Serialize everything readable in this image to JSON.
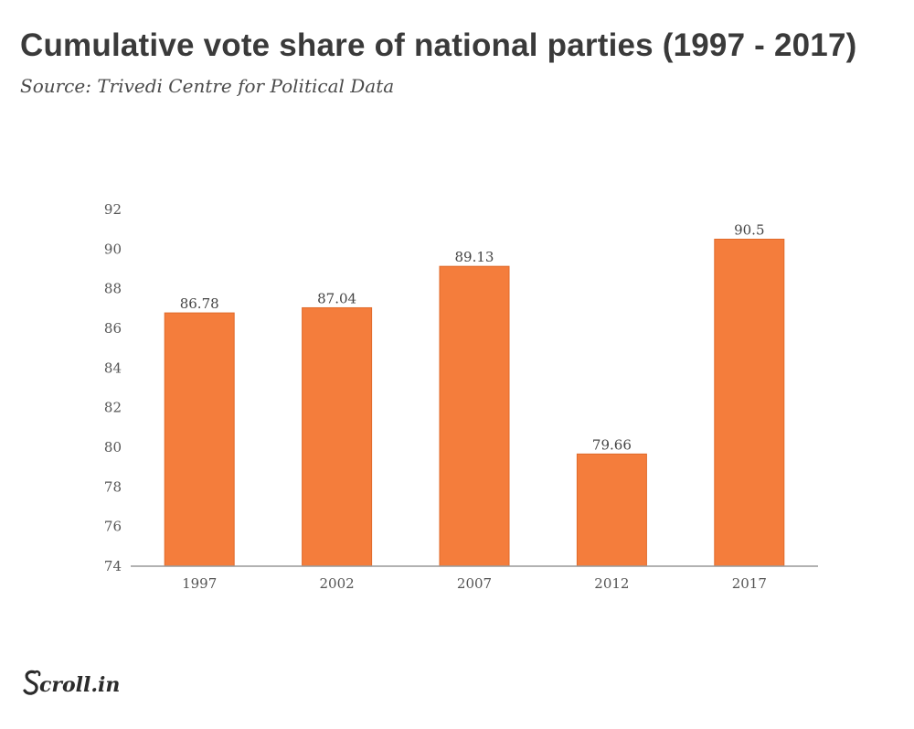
{
  "header": {
    "title": "Cumulative vote share of national parties (1997 - 2017)",
    "subtitle": "Source: Trivedi Centre for Political Data"
  },
  "branding": {
    "logo_text": "Scroll.in"
  },
  "colors": {
    "bar": "#f47d3c",
    "bar_stroke": "#e06a2a",
    "axis": "#999999",
    "text": "#3a3a3a"
  },
  "chart_data": {
    "type": "bar",
    "title": "Cumulative vote share of national parties (1997 - 2017)",
    "subtitle": "Source: Trivedi Centre for Political Data",
    "xlabel": "",
    "ylabel": "",
    "categories": [
      "1997",
      "2002",
      "2007",
      "2012",
      "2017"
    ],
    "values": [
      86.78,
      87.04,
      89.13,
      79.66,
      90.5
    ],
    "data_labels": [
      "86.78",
      "87.04",
      "89.13",
      "79.66",
      "90.5"
    ],
    "ylim": [
      74,
      92
    ],
    "yticks": [
      74,
      76,
      78,
      80,
      82,
      84,
      86,
      88,
      90,
      92
    ],
    "grid": false,
    "legend": "none"
  }
}
